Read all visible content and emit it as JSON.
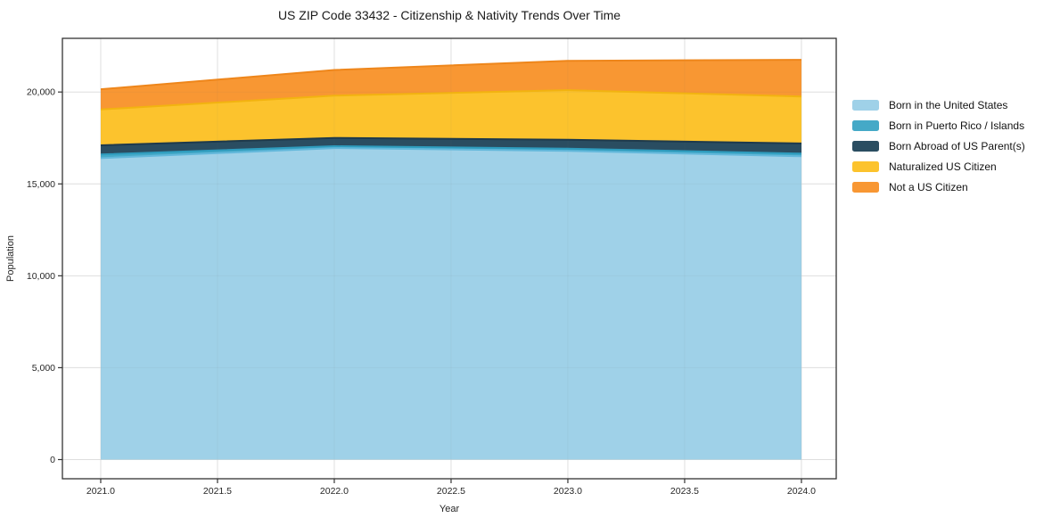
{
  "chart_data": {
    "type": "area",
    "stacked": true,
    "title": "US ZIP Code 33432 - Citizenship & Nativity Trends Over Time",
    "xlabel": "Year",
    "ylabel": "Population",
    "x": [
      2021,
      2022,
      2023,
      2024
    ],
    "series": [
      {
        "name": "Born in the United States",
        "values": [
          16400,
          16950,
          16800,
          16500
        ],
        "color": "#9FD1E8",
        "edge_color": "#63B8DB"
      },
      {
        "name": "Born in Puerto Rico / Islands",
        "values": [
          200,
          100,
          120,
          150
        ],
        "color": "#45A9C7",
        "edge_color": "#2E9CBE"
      },
      {
        "name": "Born Abroad of US Parent(s)",
        "values": [
          500,
          450,
          480,
          550
        ],
        "color": "#2A4D61",
        "edge_color": "#1E3A4C"
      },
      {
        "name": "Naturalized US Citizen",
        "values": [
          1950,
          2300,
          2700,
          2550
        ],
        "color": "#FCC32D",
        "edge_color": "#F2B310"
      },
      {
        "name": "Not a US Citizen",
        "values": [
          1100,
          1400,
          1600,
          2000
        ],
        "color": "#F89733",
        "edge_color": "#EE861B"
      }
    ],
    "totals": [
      20150,
      21200,
      21700,
      21750
    ],
    "xlim": [
      2020.836,
      2024.149
    ],
    "ylim": [
      -1043,
      22920
    ],
    "xticks": {
      "values": [
        2021.0,
        2021.5,
        2022.0,
        2022.5,
        2023.0,
        2023.5,
        2024.0
      ],
      "labels": [
        "2021.0",
        "2021.5",
        "2022.0",
        "2022.5",
        "2023.0",
        "2023.5",
        "2024.0"
      ]
    },
    "yticks": {
      "values": [
        0,
        5000,
        10000,
        15000,
        20000
      ],
      "labels": [
        "0",
        "5,000",
        "10,000",
        "15,000",
        "20,000"
      ]
    },
    "grid": true,
    "grid_color": "#e7e7e7",
    "axis_color": "#333333",
    "tick_label_color": "#262626",
    "legend_position": "outside-right",
    "background": "#ffffff"
  }
}
